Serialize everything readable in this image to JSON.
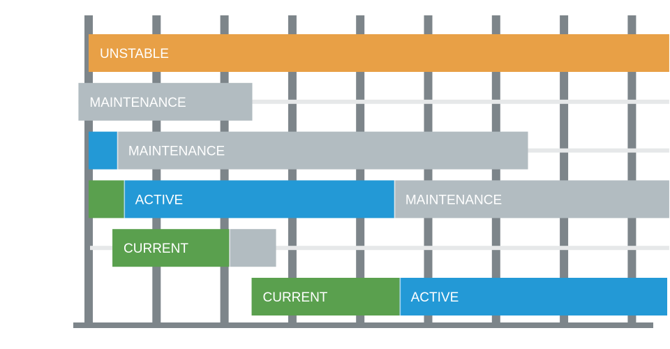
{
  "chart_data": {
    "type": "bar",
    "x_ticks": [
      "",
      "",
      "",
      "",
      "",
      "",
      "",
      "",
      ""
    ],
    "rows": [
      {
        "label": "",
        "segments": [
          {
            "status": "UNSTABLE",
            "label": "UNSTABLE",
            "start": 0,
            "end": 8.55
          }
        ]
      },
      {
        "label": "",
        "segments": [
          {
            "status": "MAINTENANCE",
            "label": "MAINTENANCE",
            "start": -0.15,
            "end": 2.41
          }
        ],
        "eol": 8.55
      },
      {
        "label": "",
        "segments": [
          {
            "status": "ACTIVE",
            "label": "",
            "start": 0.0,
            "end": 0.42
          },
          {
            "status": "MAINTENANCE",
            "label": "MAINTENANCE",
            "start": 0.42,
            "end": 6.47
          }
        ],
        "eol": 8.55
      },
      {
        "label": "",
        "segments": [
          {
            "status": "CURRENT",
            "label": "",
            "start": 0.0,
            "end": 0.52
          },
          {
            "status": "ACTIVE",
            "label": "ACTIVE",
            "start": 0.52,
            "end": 4.5
          },
          {
            "status": "MAINTENANCE",
            "label": "MAINTENANCE",
            "start": 4.5,
            "end": 8.55
          }
        ]
      },
      {
        "label": "",
        "segments": [
          {
            "status": "CURRENT",
            "label": "CURRENT",
            "start": 0.35,
            "end": 2.07
          },
          {
            "status": "MAINTENANCE",
            "label": "",
            "start": 2.07,
            "end": 2.76
          }
        ],
        "eol": 8.55
      },
      {
        "label": "",
        "segments": [
          {
            "status": "CURRENT",
            "label": "CURRENT",
            "start": 2.4,
            "end": 4.58
          },
          {
            "status": "ACTIVE",
            "label": "ACTIVE",
            "start": 4.58,
            "end": 8.52
          }
        ]
      }
    ],
    "colors": {
      "UNSTABLE": "#e8a046",
      "MAINTENANCE": "#b2bcc1",
      "ACTIVE": "#2399d6",
      "CURRENT": "#5aa04e",
      "grid": "#7d858a",
      "eol_line": "#e6e8e9"
    },
    "grid": true
  }
}
